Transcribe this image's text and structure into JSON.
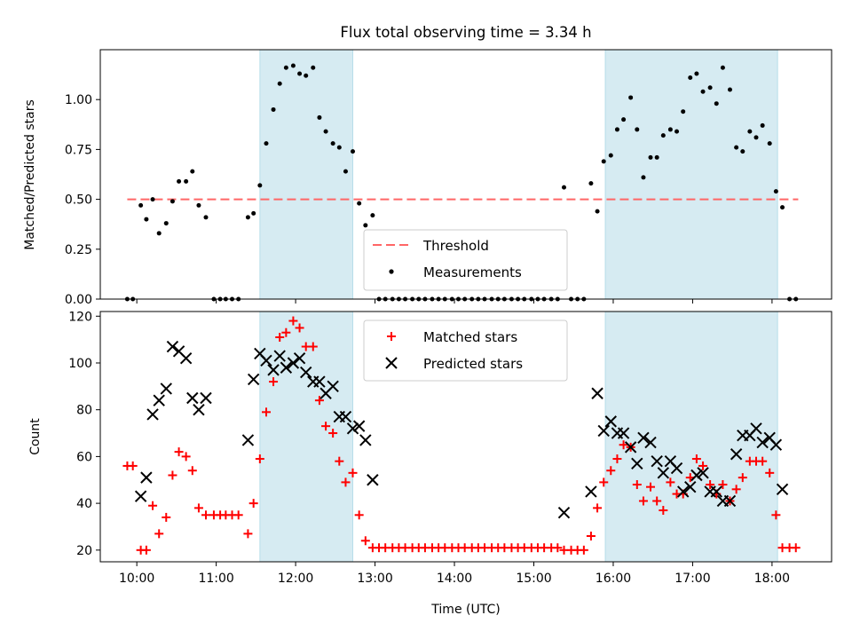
{
  "title": "Flux total observing time = 3.34 h",
  "colors": {
    "shade": "#add8e6",
    "threshold": "#ff6666",
    "matched": "#ff0000",
    "predicted": "#000000",
    "measure": "#000000"
  },
  "chart_data": [
    {
      "type": "scatter",
      "ylabel": "Matched/Predicted stars",
      "xlim": [
        9.54,
        18.75
      ],
      "ylim": [
        0,
        1.25
      ],
      "yticks": [
        0.0,
        0.25,
        0.5,
        0.75,
        1.0
      ],
      "ytick_labels": [
        "0.00",
        "0.25",
        "0.50",
        "0.75",
        "1.00"
      ],
      "xticks": [
        10,
        11,
        12,
        13,
        14,
        15,
        16,
        17,
        18
      ],
      "shaded_intervals": [
        [
          11.55,
          12.72
        ],
        [
          15.9,
          18.07
        ]
      ],
      "legend": {
        "position": "bottom-center",
        "labels": {
          "threshold": "Threshold",
          "measurements": "Measurements"
        }
      },
      "threshold": {
        "value": 0.5,
        "x_range": [
          9.88,
          18.33
        ]
      },
      "measurements": {
        "x": [
          9.88,
          9.95,
          10.05,
          10.12,
          10.2,
          10.28,
          10.37,
          10.45,
          10.53,
          10.62,
          10.7,
          10.78,
          10.87,
          10.97,
          11.05,
          11.12,
          11.2,
          11.28,
          11.4,
          11.47,
          11.55,
          11.63,
          11.72,
          11.8,
          11.88,
          11.97,
          12.05,
          12.13,
          12.22,
          12.3,
          12.38,
          12.47,
          12.55,
          12.63,
          12.72,
          12.8,
          12.88,
          12.97,
          13.05,
          13.13,
          13.22,
          13.3,
          13.38,
          13.47,
          13.55,
          13.63,
          13.72,
          13.8,
          13.88,
          13.97,
          14.05,
          14.13,
          14.22,
          14.3,
          14.38,
          14.47,
          14.55,
          14.63,
          14.72,
          14.8,
          14.88,
          14.97,
          15.05,
          15.13,
          15.22,
          15.3,
          15.38,
          15.47,
          15.55,
          15.63,
          15.72,
          15.8,
          15.88,
          15.97,
          16.05,
          16.13,
          16.22,
          16.3,
          16.38,
          16.47,
          16.55,
          16.63,
          16.72,
          16.8,
          16.88,
          16.97,
          17.05,
          17.13,
          17.22,
          17.3,
          17.38,
          17.47,
          17.55,
          17.63,
          17.72,
          17.8,
          17.88,
          17.97,
          18.05,
          18.13,
          18.22,
          18.3
        ],
        "y": [
          0,
          0,
          0.47,
          0.4,
          0.5,
          0.33,
          0.38,
          0.49,
          0.59,
          0.59,
          0.64,
          0.47,
          0.41,
          0,
          0,
          0,
          0,
          0,
          0.41,
          0.43,
          0.57,
          0.78,
          0.95,
          1.08,
          1.16,
          1.17,
          1.13,
          1.12,
          1.16,
          0.91,
          0.84,
          0.78,
          0.76,
          0.64,
          0.74,
          0.48,
          0.37,
          0.42,
          0,
          0,
          0,
          0,
          0,
          0,
          0,
          0,
          0,
          0,
          0,
          0,
          0,
          0,
          0,
          0,
          0,
          0,
          0,
          0,
          0,
          0,
          0,
          0,
          0,
          0,
          0,
          0,
          0.56,
          0,
          0,
          0,
          0.58,
          0.44,
          0.69,
          0.72,
          0.85,
          0.9,
          1.01,
          0.85,
          0.61,
          0.71,
          0.71,
          0.82,
          0.85,
          0.84,
          0.94,
          1.11,
          1.13,
          1.04,
          1.06,
          0.98,
          1.16,
          1.05,
          0.76,
          0.74,
          0.84,
          0.81,
          0.87,
          0.78,
          0.54,
          0.46,
          0,
          0
        ]
      }
    },
    {
      "type": "scatter",
      "xlabel": "Time (UTC)",
      "ylabel": "Count",
      "xlim": [
        9.54,
        18.75
      ],
      "ylim": [
        15,
        122
      ],
      "yticks": [
        20,
        40,
        60,
        80,
        100,
        120
      ],
      "ytick_labels": [
        "20",
        "40",
        "60",
        "80",
        "100",
        "120"
      ],
      "xticks": [
        10,
        11,
        12,
        13,
        14,
        15,
        16,
        17,
        18
      ],
      "xtick_labels": [
        "10:00",
        "11:00",
        "12:00",
        "13:00",
        "14:00",
        "15:00",
        "16:00",
        "17:00",
        "18:00"
      ],
      "shaded_intervals": [
        [
          11.55,
          12.72
        ],
        [
          15.9,
          18.07
        ]
      ],
      "legend": {
        "position": "top-center",
        "labels": {
          "matched": "Matched stars",
          "predicted": "Predicted stars"
        }
      },
      "matched": {
        "x": [
          9.88,
          9.95,
          10.05,
          10.12,
          10.2,
          10.28,
          10.37,
          10.45,
          10.53,
          10.62,
          10.7,
          10.78,
          10.87,
          10.97,
          11.05,
          11.12,
          11.2,
          11.28,
          11.4,
          11.47,
          11.55,
          11.63,
          11.72,
          11.8,
          11.88,
          11.97,
          12.05,
          12.13,
          12.22,
          12.3,
          12.38,
          12.47,
          12.55,
          12.63,
          12.72,
          12.8,
          12.88,
          12.97,
          13.05,
          13.13,
          13.22,
          13.3,
          13.38,
          13.47,
          13.55,
          13.63,
          13.72,
          13.8,
          13.88,
          13.97,
          14.05,
          14.13,
          14.22,
          14.3,
          14.38,
          14.47,
          14.55,
          14.63,
          14.72,
          14.8,
          14.88,
          14.97,
          15.05,
          15.13,
          15.22,
          15.3,
          15.38,
          15.47,
          15.55,
          15.63,
          15.72,
          15.8,
          15.88,
          15.97,
          16.05,
          16.13,
          16.22,
          16.3,
          16.38,
          16.47,
          16.55,
          16.63,
          16.72,
          16.8,
          16.88,
          16.97,
          17.05,
          17.13,
          17.22,
          17.3,
          17.38,
          17.47,
          17.55,
          17.63,
          17.72,
          17.8,
          17.88,
          17.97,
          18.05,
          18.13,
          18.22,
          18.3
        ],
        "y": [
          56,
          56,
          20,
          20,
          39,
          27,
          34,
          52,
          62,
          60,
          54,
          38,
          35,
          35,
          35,
          35,
          35,
          35,
          27,
          40,
          59,
          79,
          92,
          111,
          113,
          118,
          115,
          107,
          107,
          84,
          73,
          70,
          58,
          49,
          53,
          35,
          24,
          21,
          21,
          21,
          21,
          21,
          21,
          21,
          21,
          21,
          21,
          21,
          21,
          21,
          21,
          21,
          21,
          21,
          21,
          21,
          21,
          21,
          21,
          21,
          21,
          21,
          21,
          21,
          21,
          21,
          20,
          20,
          20,
          20,
          26,
          38,
          49,
          54,
          59,
          65,
          64,
          48,
          41,
          47,
          41,
          37,
          49,
          44,
          44,
          51,
          59,
          56,
          48,
          44,
          48,
          41,
          46,
          51,
          58,
          58,
          58,
          53,
          35,
          21,
          21,
          21
        ]
      },
      "predicted": {
        "x": [
          10.05,
          10.12,
          10.2,
          10.28,
          10.37,
          10.45,
          10.53,
          10.62,
          10.7,
          10.78,
          10.87,
          11.4,
          11.47,
          11.55,
          11.63,
          11.72,
          11.8,
          11.88,
          11.97,
          12.05,
          12.13,
          12.22,
          12.3,
          12.38,
          12.47,
          12.55,
          12.63,
          12.72,
          12.8,
          12.88,
          12.97,
          15.38,
          15.72,
          15.8,
          15.88,
          15.97,
          16.05,
          16.13,
          16.22,
          16.3,
          16.38,
          16.47,
          16.55,
          16.63,
          16.72,
          16.8,
          16.88,
          16.97,
          17.05,
          17.13,
          17.22,
          17.3,
          17.38,
          17.47,
          17.55,
          17.63,
          17.72,
          17.8,
          17.88,
          17.97,
          18.05,
          18.13
        ],
        "y": [
          43,
          51,
          78,
          84,
          89,
          107,
          105,
          102,
          85,
          80,
          85,
          67,
          93,
          104,
          101,
          97,
          103,
          98,
          100,
          102,
          96,
          92,
          92,
          87,
          90,
          77,
          77,
          72,
          73,
          67,
          50,
          36,
          45,
          87,
          71,
          75,
          70,
          70,
          64,
          57,
          68,
          66,
          58,
          53,
          58,
          55,
          45,
          47,
          52,
          53,
          45,
          45,
          41,
          41,
          61,
          69,
          69,
          72,
          66,
          68,
          65,
          46
        ]
      }
    }
  ]
}
